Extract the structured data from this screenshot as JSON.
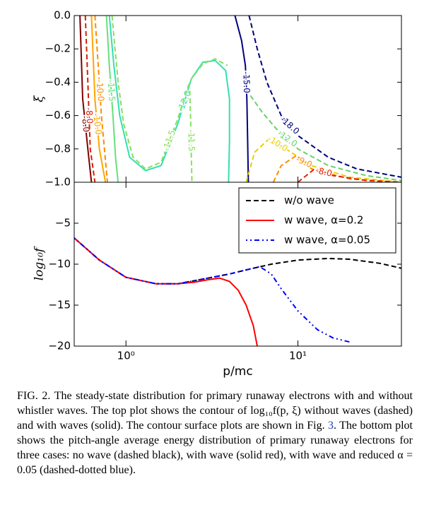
{
  "chart_data": [
    {
      "type": "contour",
      "ylabel": "ξ",
      "xlim": [
        0.5,
        40
      ],
      "xlog": true,
      "xticks": [
        1,
        10
      ],
      "ylim": [
        -1,
        0
      ],
      "yticks": [
        {
          "value": -1,
          "label": "−1.0"
        },
        {
          "value": -0.8,
          "label": "−0.8"
        },
        {
          "value": -0.6,
          "label": "−0.6"
        },
        {
          "value": -0.4,
          "label": "−0.4"
        },
        {
          "value": -0.2,
          "label": "−0.2"
        },
        {
          "value": 0,
          "label": "0.0"
        }
      ],
      "contours": [
        {
          "level": {
            "value": -8,
            "label": "-8.0"
          },
          "style": "solid",
          "color": "#800000",
          "x": [
            0.54,
            0.56,
            0.6,
            0.63
          ],
          "y": [
            0,
            -0.5,
            -0.8,
            -1
          ]
        },
        {
          "level": {
            "value": -8,
            "label": "-8.0"
          },
          "style": "dashed",
          "color": "#d62000",
          "x": [
            0.58,
            0.6,
            0.62,
            0.66
          ],
          "y": [
            0,
            -0.4,
            -0.8,
            -1
          ]
        },
        {
          "level": {
            "value": -10,
            "label": "-10.0"
          },
          "style": "solid",
          "color": "#ffa500",
          "x": [
            0.63,
            0.66,
            0.7,
            0.76
          ],
          "y": [
            0,
            -0.5,
            -0.8,
            -1
          ]
        },
        {
          "level": {
            "value": -10,
            "label": "-10.0"
          },
          "style": "dashed",
          "color": "#ff8c00",
          "x": [
            0.66,
            0.69,
            0.72,
            0.78
          ],
          "y": [
            0,
            -0.3,
            -0.6,
            -1
          ]
        },
        {
          "level": {
            "value": -11.5,
            "label": "-11.5"
          },
          "style": "solid",
          "color": "#66e07a",
          "x": [
            0.77,
            0.8,
            0.84,
            0.87,
            0.9
          ],
          "y": [
            0,
            -0.3,
            -0.6,
            -0.85,
            -1
          ]
        },
        {
          "level": {
            "value": -12,
            "label": "-12.0"
          },
          "style": "solid",
          "color": "#33e0b0",
          "x": [
            0.8,
            0.85,
            0.92,
            1.05,
            1.3,
            1.6,
            2.0,
            2.4,
            2.8,
            3.3,
            3.8,
            4.0,
            4.0,
            3.95
          ],
          "y": [
            0,
            -0.3,
            -0.6,
            -0.85,
            -0.93,
            -0.9,
            -0.65,
            -0.38,
            -0.28,
            -0.27,
            -0.33,
            -0.5,
            -0.75,
            -1
          ]
        },
        {
          "level": {
            "value": -11.5,
            "label": "-11.5"
          },
          "style": "dashed",
          "color": "#88e060",
          "x": [
            0.83,
            0.9,
            0.97,
            1.1,
            1.3,
            1.6,
            2.0,
            2.25,
            2.4,
            2.8,
            3.3,
            3.9
          ],
          "y": [
            0,
            -0.4,
            -0.65,
            -0.85,
            -0.92,
            -0.88,
            -0.62,
            -0.45,
            -0.38,
            -0.29,
            -0.26,
            -0.3
          ]
        },
        {
          "level": {
            "value": -11.5,
            "label": "-11.5"
          },
          "style": "dashed",
          "color": "#88e060",
          "x": [
            2.35,
            2.38,
            2.4,
            2.42
          ],
          "y": [
            -0.45,
            -0.65,
            -0.85,
            -1
          ]
        },
        {
          "level": {
            "value": -15,
            "label": "-15.0"
          },
          "style": "solid",
          "color": "#000080",
          "x": [
            4.3,
            4.7,
            4.95,
            5.05,
            5.1,
            5.15
          ],
          "y": [
            0,
            -0.15,
            -0.3,
            -0.5,
            -0.75,
            -1
          ]
        },
        {
          "level": {
            "value": -18,
            "label": "-18.0"
          },
          "style": "dashed",
          "color": "#000080",
          "x": [
            5.2,
            5.8,
            6.6,
            8,
            10,
            15,
            22,
            40
          ],
          "y": [
            0,
            -0.2,
            -0.4,
            -0.6,
            -0.72,
            -0.85,
            -0.92,
            -0.97
          ]
        },
        {
          "level": {
            "value": -12,
            "label": "-12.0"
          },
          "style": "dashed",
          "color": "#6ad06a",
          "x": [
            5.3,
            6.2,
            7.5,
            10,
            15,
            25,
            40
          ],
          "y": [
            -0.48,
            -0.58,
            -0.68,
            -0.8,
            -0.9,
            -0.96,
            -0.99
          ]
        },
        {
          "level": {
            "value": -10,
            "label": "-10.0"
          },
          "style": "dashed",
          "color": "#e8d000",
          "x": [
            5.0,
            5.6,
            6.8,
            8.5,
            12,
            20,
            40
          ],
          "y": [
            -1,
            -0.82,
            -0.74,
            -0.8,
            -0.9,
            -0.97,
            -1
          ]
        },
        {
          "level": {
            "value": -9,
            "label": "-9.0"
          },
          "style": "dashed",
          "color": "#ff8c00",
          "x": [
            7.2,
            8,
            9.8,
            12,
            20,
            40
          ],
          "y": [
            -1,
            -0.9,
            -0.84,
            -0.92,
            -0.98,
            -1
          ]
        },
        {
          "level": {
            "value": -8,
            "label": "-8.0"
          },
          "style": "dashed",
          "color": "#e02000",
          "x": [
            10,
            11.5,
            12.5,
            16,
            25,
            40
          ],
          "y": [
            -1,
            -0.95,
            -0.92,
            -0.96,
            -0.99,
            -1
          ]
        }
      ]
    },
    {
      "type": "line",
      "xlabel": "p/mc",
      "ylabel": "log₁₀f",
      "xlim": [
        0.5,
        40
      ],
      "xlog": true,
      "xticks": [
        {
          "value": 1,
          "label": "10⁰"
        },
        {
          "value": 10,
          "label": "10¹"
        }
      ],
      "ylim": [
        -20,
        0
      ],
      "yticks": [
        {
          "value": -20,
          "label": "−20"
        },
        {
          "value": -15,
          "label": "−15"
        },
        {
          "value": -10,
          "label": "−10"
        },
        {
          "value": -5,
          "label": "−5"
        }
      ],
      "legend": "upper right",
      "series": [
        {
          "name": "w/o wave",
          "color": "#000000",
          "style": "dashed",
          "x": [
            0.5,
            0.7,
            1,
            1.5,
            2,
            3,
            4,
            5,
            7,
            10,
            15,
            20,
            30,
            40
          ],
          "values": [
            -6.8,
            -9.5,
            -11.6,
            -12.4,
            -12.4,
            -11.7,
            -11.2,
            -10.7,
            -10,
            -9.5,
            -9.3,
            -9.4,
            -9.9,
            -10.5
          ]
        },
        {
          "name": "w wave, α=0.2",
          "color": "#ff0000",
          "style": "solid",
          "x": [
            0.5,
            0.7,
            1,
            1.5,
            2,
            2.5,
            3,
            3.5,
            4,
            4.5,
            5,
            5.5,
            5.8
          ],
          "values": [
            -6.8,
            -9.5,
            -11.6,
            -12.4,
            -12.4,
            -12.2,
            -11.9,
            -11.7,
            -12.1,
            -13.2,
            -15,
            -17.5,
            -20
          ]
        },
        {
          "name": "w wave, α=0.05",
          "color": "#0000ff",
          "style": "dashdot",
          "x": [
            0.5,
            0.7,
            1,
            1.5,
            2,
            3,
            4,
            5,
            6,
            7,
            8,
            10,
            13,
            16,
            20
          ],
          "values": [
            -6.8,
            -9.5,
            -11.6,
            -12.4,
            -12.4,
            -11.7,
            -11.2,
            -10.7,
            -10.3,
            -11.2,
            -13,
            -15.7,
            -18,
            -19,
            -19.5
          ]
        }
      ]
    }
  ],
  "caption": {
    "before": "FIG. 2. The steady-state distribution for primary runaway electrons with and without whistler waves. The top plot shows the contour of log₁₀f(p, ξ) without waves (dashed) and with waves (solid). The contour surface plots are shown in Fig. ",
    "ref": "3",
    "after": ". The bottom plot shows the pitch-angle average energy distribution of primary runaway electrons for three cases: no wave (dashed black), with wave (solid red), with wave and reduced α = 0.05 (dashed-dotted blue)."
  }
}
